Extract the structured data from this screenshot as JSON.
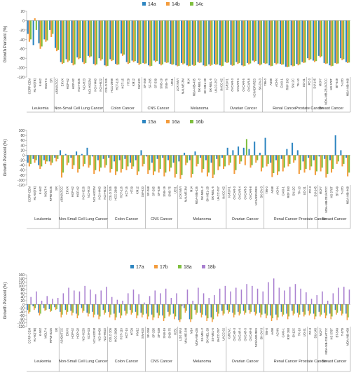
{
  "chart_data": [
    {
      "type": "bar",
      "ylabel": "Growth Percent (%)",
      "ylim": [
        -120,
        20
      ],
      "yticks": [
        20,
        0,
        -20,
        -40,
        -60,
        -80,
        -100,
        -120
      ],
      "legend": "top-center",
      "grid": false,
      "categories": [
        "CCRF-CEM",
        "HL-60(TB)",
        "K-562",
        "MOLT-4",
        "SR",
        "A549/ATCC",
        "EKVX",
        "HOP-62",
        "HOP-92",
        "NCI-H226",
        "NCI-H23",
        "NCI-H322M",
        "NCI-H460",
        "NCI-H522",
        "COLO 205",
        "HCC-2998",
        "HCT-116",
        "HCT-15",
        "HT29",
        "KM12",
        "SW-620",
        "SF-268",
        "SF-295",
        "SF-539",
        "SNB-19",
        "SNB-75",
        "U251",
        "LOX IMVI",
        "MALME-3M",
        "M14",
        "MDA-MB-435",
        "SK-MEL-2",
        "SK-MEL-28",
        "SK-MEL-5",
        "UACC-257",
        "UACC-62",
        "IGROV1",
        "OVCAR-3",
        "OVCAR-4",
        "OVCAR-5",
        "OVCAR-8",
        "NCI/ADR-RES",
        "SK-OV-3",
        "786-0",
        "A498",
        "ACHN",
        "CAKI-1",
        "RXF 393",
        "SN12C",
        "TK-10",
        "UO-31",
        "PC-3",
        "DU-145",
        "MCF7",
        "MDA-MB-231/ATCC",
        "HS 578T",
        "BT-549",
        "T-47D",
        "MDA-MB-468"
      ],
      "groups": [
        "Leukemia",
        "Non-Small Cell Lung Cancer",
        "Colon Cancer",
        "CNS Cancer",
        "Melanoma",
        "Ovarian Cancer",
        "Renal Cancer",
        "Prostate Cancer",
        "Breast Cancer"
      ],
      "series": [
        {
          "name": "14a",
          "color": "#2e86c1",
          "values": [
            -28,
            -52,
            -48,
            -40,
            -20,
            -58,
            -88,
            -82,
            -90,
            -78,
            -88,
            -75,
            -92,
            -80,
            -95,
            -82,
            -92,
            -70,
            -88,
            -85,
            -90,
            -90,
            -95,
            -85,
            -92,
            -88,
            -92,
            -95,
            -90,
            -95,
            -94,
            -88,
            -95,
            -93,
            -92,
            -95,
            -88,
            -94,
            -88,
            -95,
            -90,
            -85,
            -92,
            -90,
            -95,
            -90,
            -92,
            -98,
            -95,
            -92,
            -88,
            -80,
            -85,
            -75,
            -90,
            -95,
            -90,
            -80,
            -88
          ]
        },
        {
          "name": "14b",
          "color": "#f39c3d",
          "values": [
            -45,
            5,
            -60,
            -45,
            -35,
            -65,
            -92,
            -88,
            -95,
            -82,
            -92,
            -78,
            -95,
            -85,
            -97,
            -86,
            -94,
            -75,
            -92,
            -88,
            -94,
            -92,
            -97,
            -88,
            -95,
            -90,
            -94,
            -97,
            -93,
            -97,
            -96,
            -90,
            -97,
            -96,
            -94,
            -97,
            -90,
            -96,
            -92,
            -97,
            -93,
            -88,
            -95,
            -92,
            -97,
            -93,
            -94,
            -99,
            -97,
            -95,
            -90,
            -84,
            -88,
            -78,
            -92,
            -97,
            -92,
            -84,
            -90
          ]
        },
        {
          "name": "14c",
          "color": "#7fbf3f",
          "values": [
            -40,
            -20,
            -55,
            -42,
            -28,
            -62,
            -90,
            -85,
            -93,
            -80,
            -90,
            -76,
            -93,
            -82,
            -96,
            -84,
            -93,
            -72,
            -90,
            -86,
            -92,
            -91,
            -96,
            -86,
            -93,
            -89,
            -93,
            -96,
            -91,
            -96,
            -95,
            -89,
            -96,
            -94,
            -93,
            -96,
            -89,
            -95,
            -90,
            -96,
            -91,
            -86,
            -93,
            -91,
            -96,
            -91,
            -93,
            -98,
            -96,
            -93,
            -89,
            -82,
            -86,
            -76,
            -91,
            -96,
            -91,
            -82,
            -89
          ]
        }
      ]
    },
    {
      "type": "bar",
      "ylabel": "Growth Percent (%)",
      "ylim": [
        -120,
        100
      ],
      "yticks": [
        100,
        80,
        60,
        40,
        20,
        0,
        -20,
        -40,
        -60,
        -80,
        -100,
        -120
      ],
      "legend": "top-center",
      "grid": false,
      "categories": [
        "CCRF-CEM",
        "HL-60(TB)",
        "K-562",
        "MOLT-4",
        "RPMI-8226",
        "SR",
        "A549/ATCC",
        "EKVX",
        "HOP-62",
        "HOP-92",
        "NCI-H226",
        "NCI-H23",
        "NCI-H322M",
        "NCI-H460",
        "NCI-H522",
        "COLO 205",
        "HCC-2998",
        "HCT-116",
        "HCT-15",
        "HT29",
        "KM12",
        "SW-620",
        "SF-268",
        "SF-295",
        "SF-539",
        "SNB-19",
        "SNB-75",
        "U251",
        "LOX IMVI",
        "MALME-3M",
        "M14",
        "MDA-MB-435",
        "SK-MEL-2",
        "SK-MEL-28",
        "SK-MEL-5",
        "UACC-257",
        "UACC-62",
        "IGROV1",
        "OVCAR-3",
        "OVCAR-4",
        "OVCAR-5",
        "OVCAR-8",
        "NCI/ADR-RES",
        "SK-OV-3",
        "786-0",
        "A498",
        "ACHN",
        "CAKI-1",
        "RXF 393",
        "SN12C",
        "TK-10",
        "UO-31",
        "PC-3",
        "DU-145",
        "MCF7",
        "MDA-MB-231/ATCC",
        "HS 578T",
        "BT-549",
        "T-47D",
        "MDA-MB-468"
      ],
      "groups": [
        "Leukemia",
        "Non-Small Cell Lung Cancer",
        "Colon Cancer",
        "CNS Cancer",
        "Melanoma",
        "Ovarian Cancer",
        "Renal Cancer",
        "Prostate Cancer",
        "Breast Cancer"
      ],
      "series": [
        {
          "name": "15a",
          "color": "#2e86c1",
          "values": [
            -30,
            -15,
            -40,
            -20,
            -25,
            -10,
            20,
            5,
            -10,
            15,
            5,
            30,
            -5,
            -20,
            -15,
            -10,
            -25,
            -20,
            -15,
            -30,
            -20,
            20,
            -5,
            -30,
            -15,
            -10,
            -20,
            -30,
            -25,
            10,
            -20,
            15,
            -10,
            -20,
            -30,
            -15,
            -10,
            30,
            20,
            35,
            30,
            25,
            55,
            10,
            70,
            -30,
            -20,
            -15,
            25,
            50,
            20,
            -25,
            -10,
            -20,
            -5,
            -15,
            -20,
            80,
            20,
            -10
          ]
        },
        {
          "name": "16a",
          "color": "#f39c3d",
          "values": [
            -45,
            -30,
            -55,
            -35,
            -40,
            -25,
            -90,
            -40,
            -55,
            -70,
            -45,
            -50,
            -75,
            -65,
            -50,
            -70,
            -80,
            -70,
            -60,
            -55,
            -80,
            -45,
            -75,
            -80,
            -70,
            -85,
            -65,
            -90,
            -95,
            -40,
            -90,
            -45,
            -70,
            -85,
            -92,
            -60,
            -55,
            -40,
            -75,
            -35,
            -40,
            -50,
            -30,
            -65,
            -45,
            -88,
            -80,
            -65,
            -45,
            -30,
            -75,
            -70,
            -60,
            -80,
            -65,
            -90,
            -70,
            -35,
            -45,
            -85
          ]
        },
        {
          "name": "16b",
          "color": "#7fbf3f",
          "values": [
            -35,
            -20,
            -45,
            -25,
            -30,
            -15,
            -70,
            -30,
            -40,
            -55,
            -35,
            -40,
            -60,
            -50,
            -40,
            -55,
            -65,
            -55,
            -45,
            -45,
            -65,
            -35,
            -60,
            -65,
            -55,
            -70,
            -50,
            -75,
            -80,
            -30,
            -75,
            -35,
            -55,
            -70,
            -78,
            -45,
            -45,
            -30,
            -60,
            -25,
            65,
            -40,
            -20,
            -50,
            -35,
            -72,
            -65,
            -50,
            -35,
            -20,
            -60,
            -55,
            -45,
            -65,
            -50,
            -75,
            -55,
            -25,
            -35,
            -70
          ]
        }
      ]
    },
    {
      "type": "bar",
      "ylabel": "Growth Percent (%)",
      "ylim": [
        -120,
        160
      ],
      "yticks": [
        160,
        140,
        120,
        100,
        80,
        60,
        40,
        20,
        0,
        -20,
        -40,
        -60,
        -80,
        -100,
        -120
      ],
      "legend": "top-center",
      "grid": false,
      "categories": [
        "CCRF-CEM",
        "HL-60(TB)",
        "K-562",
        "MOLT-4",
        "RPMI-8226",
        "SR",
        "A549/ATCC",
        "EKVX",
        "HOP-62",
        "HOP-92",
        "NCI-H226",
        "NCI-H23",
        "NCI-H322M",
        "NCI-H460",
        "NCI-H522",
        "COLO 205",
        "HCC-2998",
        "HCT-116",
        "HCT-15",
        "HT29",
        "KM12",
        "SW-620",
        "SF-268",
        "SF-295",
        "SF-539",
        "SNB-19",
        "SNB-75",
        "U251",
        "LOX IMVI",
        "MALME-3M",
        "M14",
        "MDA-MB-435",
        "SK-MEL-2",
        "SK-MEL-28",
        "SK-MEL-5",
        "UACC-257",
        "UACC-62",
        "IGROV1",
        "OVCAR-3",
        "OVCAR-4",
        "OVCAR-5",
        "OVCAR-8",
        "NCI/ADR-RES",
        "SK-OV-3",
        "786-0",
        "A498",
        "ACHN",
        "CAKI-1",
        "RXF 393",
        "SN12C",
        "TK-10",
        "UO-31",
        "PC-3",
        "DU-145",
        "MCF7",
        "MDA-MB-231/ATCC",
        "HS 578T",
        "BT-549",
        "T-47D",
        "MDA-MB-468"
      ],
      "groups": [
        "Leukemia",
        "Non-Small Cell Lung Cancer",
        "Colon Cancer",
        "CNS Cancer",
        "Melanoma",
        "Ovarian Cancer",
        "Renal Cancer",
        "Prostate Cancer",
        "Breast Cancer"
      ],
      "series": [
        {
          "name": "17a",
          "color": "#2e86c1",
          "values": [
            -30,
            -10,
            -45,
            -20,
            -25,
            -15,
            -40,
            -30,
            -35,
            -50,
            -20,
            -45,
            -40,
            -55,
            -30,
            -40,
            -50,
            -45,
            -35,
            -30,
            -40,
            -45,
            -50,
            -55,
            -45,
            -60,
            -40,
            -50,
            -85,
            -20,
            -80,
            -30,
            -45,
            -60,
            -70,
            -40,
            -35,
            -30,
            -45,
            -40,
            -35,
            -30,
            -40,
            -45,
            -50,
            -60,
            -55,
            -40,
            -50,
            -35,
            -45,
            -40,
            -35,
            -50,
            -40,
            -45,
            -50,
            -30,
            -35,
            -50
          ]
        },
        {
          "name": "17b",
          "color": "#f39c3d",
          "values": [
            -50,
            -30,
            -60,
            -35,
            -40,
            -30,
            -70,
            -55,
            -60,
            -75,
            -45,
            -65,
            -70,
            -80,
            -55,
            -70,
            -85,
            -75,
            -60,
            -55,
            -75,
            -70,
            -80,
            -85,
            -75,
            -90,
            -65,
            -80,
            -95,
            -45,
            -95,
            -55,
            -70,
            -90,
            -95,
            -65,
            -60,
            -50,
            -70,
            -60,
            -55,
            -50,
            -60,
            -70,
            -75,
            -90,
            -85,
            -65,
            -80,
            -60,
            -70,
            -65,
            -60,
            -80,
            -65,
            -75,
            -80,
            -55,
            -60,
            -85
          ]
        },
        {
          "name": "18a",
          "color": "#7fbf3f",
          "values": [
            -40,
            -20,
            -50,
            -30,
            -35,
            -25,
            -55,
            -40,
            -45,
            -60,
            -35,
            -50,
            -55,
            -65,
            -45,
            -55,
            -70,
            -60,
            -50,
            -45,
            -60,
            -55,
            -65,
            -70,
            -60,
            -75,
            -55,
            -65,
            -80,
            -35,
            -80,
            -45,
            -55,
            -75,
            -80,
            -50,
            -50,
            -40,
            -55,
            -50,
            -45,
            -40,
            -50,
            -55,
            -60,
            -75,
            -70,
            -55,
            -65,
            -50,
            -55,
            -55,
            -50,
            -65,
            -55,
            -60,
            -65,
            -45,
            -50,
            -70
          ]
        },
        {
          "name": "18b",
          "color": "#a97fd0",
          "values": [
            40,
            70,
            20,
            45,
            30,
            35,
            60,
            90,
            75,
            70,
            100,
            80,
            55,
            75,
            95,
            40,
            25,
            20,
            60,
            80,
            55,
            10,
            45,
            75,
            60,
            85,
            35,
            60,
            -10,
            80,
            20,
            90,
            60,
            35,
            50,
            85,
            100,
            70,
            90,
            80,
            110,
            100,
            85,
            70,
            120,
            140,
            90,
            75,
            95,
            110,
            85,
            65,
            30,
            50,
            70,
            20,
            60,
            90,
            95,
            80
          ]
        }
      ]
    }
  ]
}
